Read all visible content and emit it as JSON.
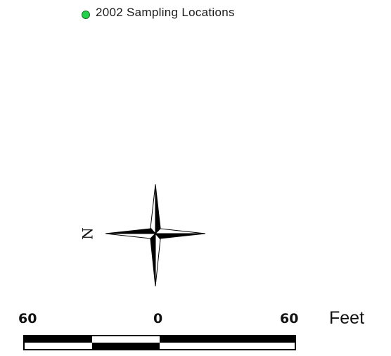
{
  "legend": {
    "label": "2002 Sampling Locations",
    "marker_color": "#22d24a",
    "marker_icon": "green-circle-marker"
  },
  "north_arrow": {
    "label": "N",
    "icon": "compass-rose-icon"
  },
  "scale_bar": {
    "left_label": "60",
    "center_label": "0",
    "right_label": "60",
    "unit": "Feet"
  }
}
